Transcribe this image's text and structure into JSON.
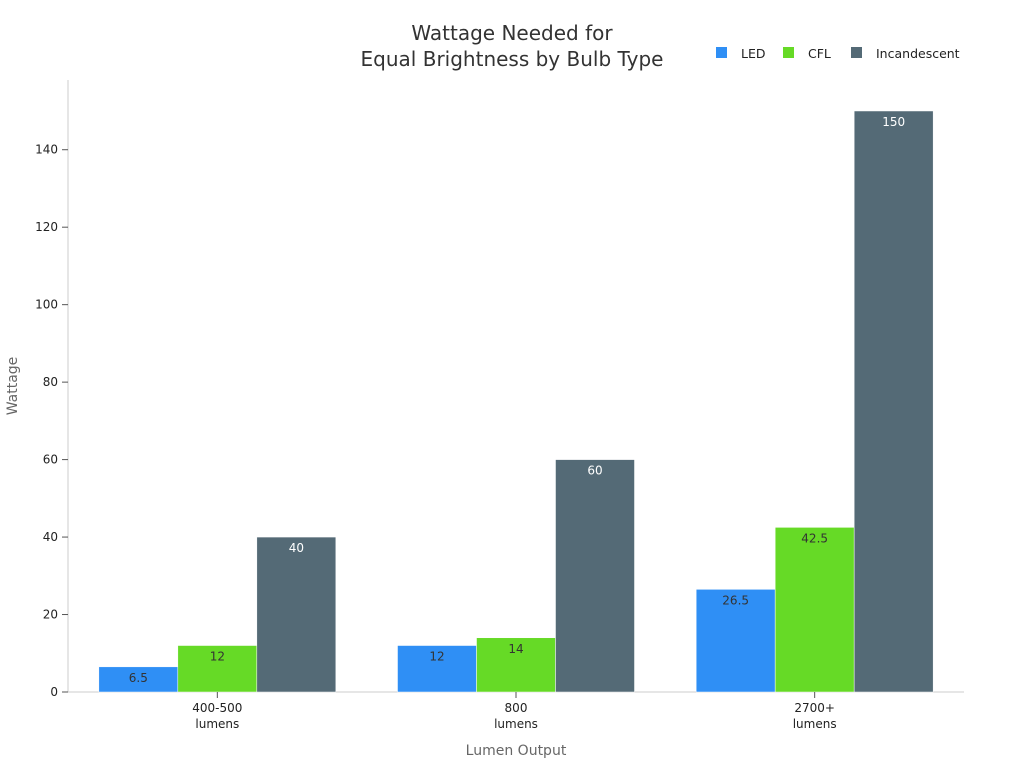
{
  "chart_data": {
    "type": "bar",
    "title": [
      "Wattage Needed for",
      "Equal Brightness by Bulb Type"
    ],
    "xlabel": "Lumen Output",
    "ylabel": "Wattage",
    "categories": [
      [
        "400-500",
        "lumens"
      ],
      [
        "800",
        "lumens"
      ],
      [
        "2700+",
        "lumens"
      ]
    ],
    "series": [
      {
        "name": "LED",
        "color": "#2F8FF5",
        "label_color": "#333333",
        "values": [
          6.5,
          12,
          26.5
        ]
      },
      {
        "name": "CFL",
        "color": "#66DA26",
        "label_color": "#333333",
        "values": [
          12,
          14,
          42.5
        ]
      },
      {
        "name": "Incandescent",
        "color": "#546A76",
        "label_color": "#ffffff",
        "values": [
          40,
          60,
          150
        ]
      }
    ],
    "value_labels": [
      [
        "6.5",
        "12",
        "26.5"
      ],
      [
        "12",
        "14",
        "42.5"
      ],
      [
        "40",
        "60",
        "150"
      ]
    ],
    "ylim": [
      0,
      158
    ],
    "yticks": [
      0,
      20,
      40,
      60,
      80,
      100,
      120,
      140
    ],
    "grid": false,
    "legend_position": "top-right"
  }
}
